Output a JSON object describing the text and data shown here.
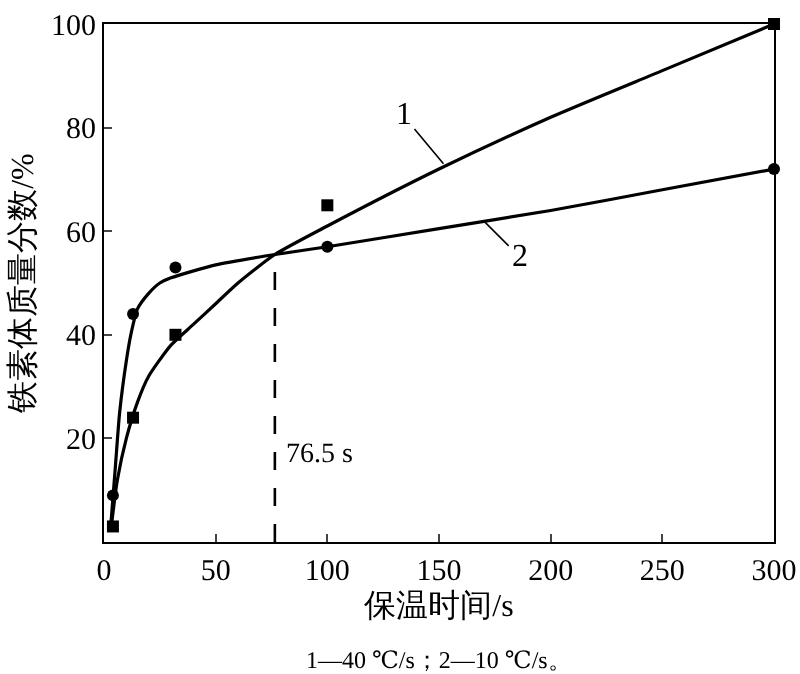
{
  "chart_data": {
    "type": "line",
    "xlabel": "保温时间/s",
    "ylabel": "铁素体质量分数/%",
    "xlim": [
      0,
      300
    ],
    "ylim": [
      0,
      100
    ],
    "xticks": [
      0,
      50,
      100,
      150,
      200,
      250,
      300
    ],
    "yticks": [
      {
        "value": 0,
        "label": null
      },
      20,
      40,
      60,
      80,
      100
    ],
    "grid": false,
    "line_style": "solid",
    "series": [
      {
        "type": "line",
        "color": "#000000",
        "marker": "none",
        "x": [
          3,
          6,
          10,
          15,
          20,
          30,
          40,
          50,
          60,
          76.5,
          100,
          150,
          200,
          250,
          300
        ],
        "values": [
          2,
          12,
          20,
          27,
          32,
          38,
          42,
          46,
          50,
          55.5,
          61,
          72,
          82,
          91,
          100
        ]
      },
      {
        "type": "line",
        "color": "#000000",
        "marker": "none",
        "x": [
          3,
          5,
          7,
          10,
          12,
          15,
          20,
          25,
          30,
          50,
          76.5,
          100,
          150,
          200,
          250,
          300
        ],
        "values": [
          3,
          14,
          25,
          35,
          40,
          45,
          48,
          50,
          51,
          53.5,
          55.5,
          57,
          60.5,
          64,
          68,
          72
        ]
      },
      {
        "type": "scatter",
        "color": "#000000",
        "marker": "square",
        "x": [
          4,
          13,
          32,
          100,
          300
        ],
        "values": [
          3,
          24,
          40,
          65,
          100
        ]
      },
      {
        "type": "scatter",
        "color": "#000000",
        "marker": "circle",
        "x": [
          4,
          13,
          32,
          100,
          300
        ],
        "values": [
          9,
          44,
          53,
          57,
          72
        ]
      }
    ],
    "ref_lines": [
      {
        "axis": "x",
        "value": 76.5,
        "label": "76.5 s",
        "line_style": "dashed",
        "color": "#000000"
      }
    ],
    "annotations": [
      {
        "text": "1",
        "x": 152,
        "y": 73
      },
      {
        "text": "2",
        "x": 170,
        "y": 62
      },
      "1—40 ℃/s；2—10 ℃/s。"
    ]
  }
}
